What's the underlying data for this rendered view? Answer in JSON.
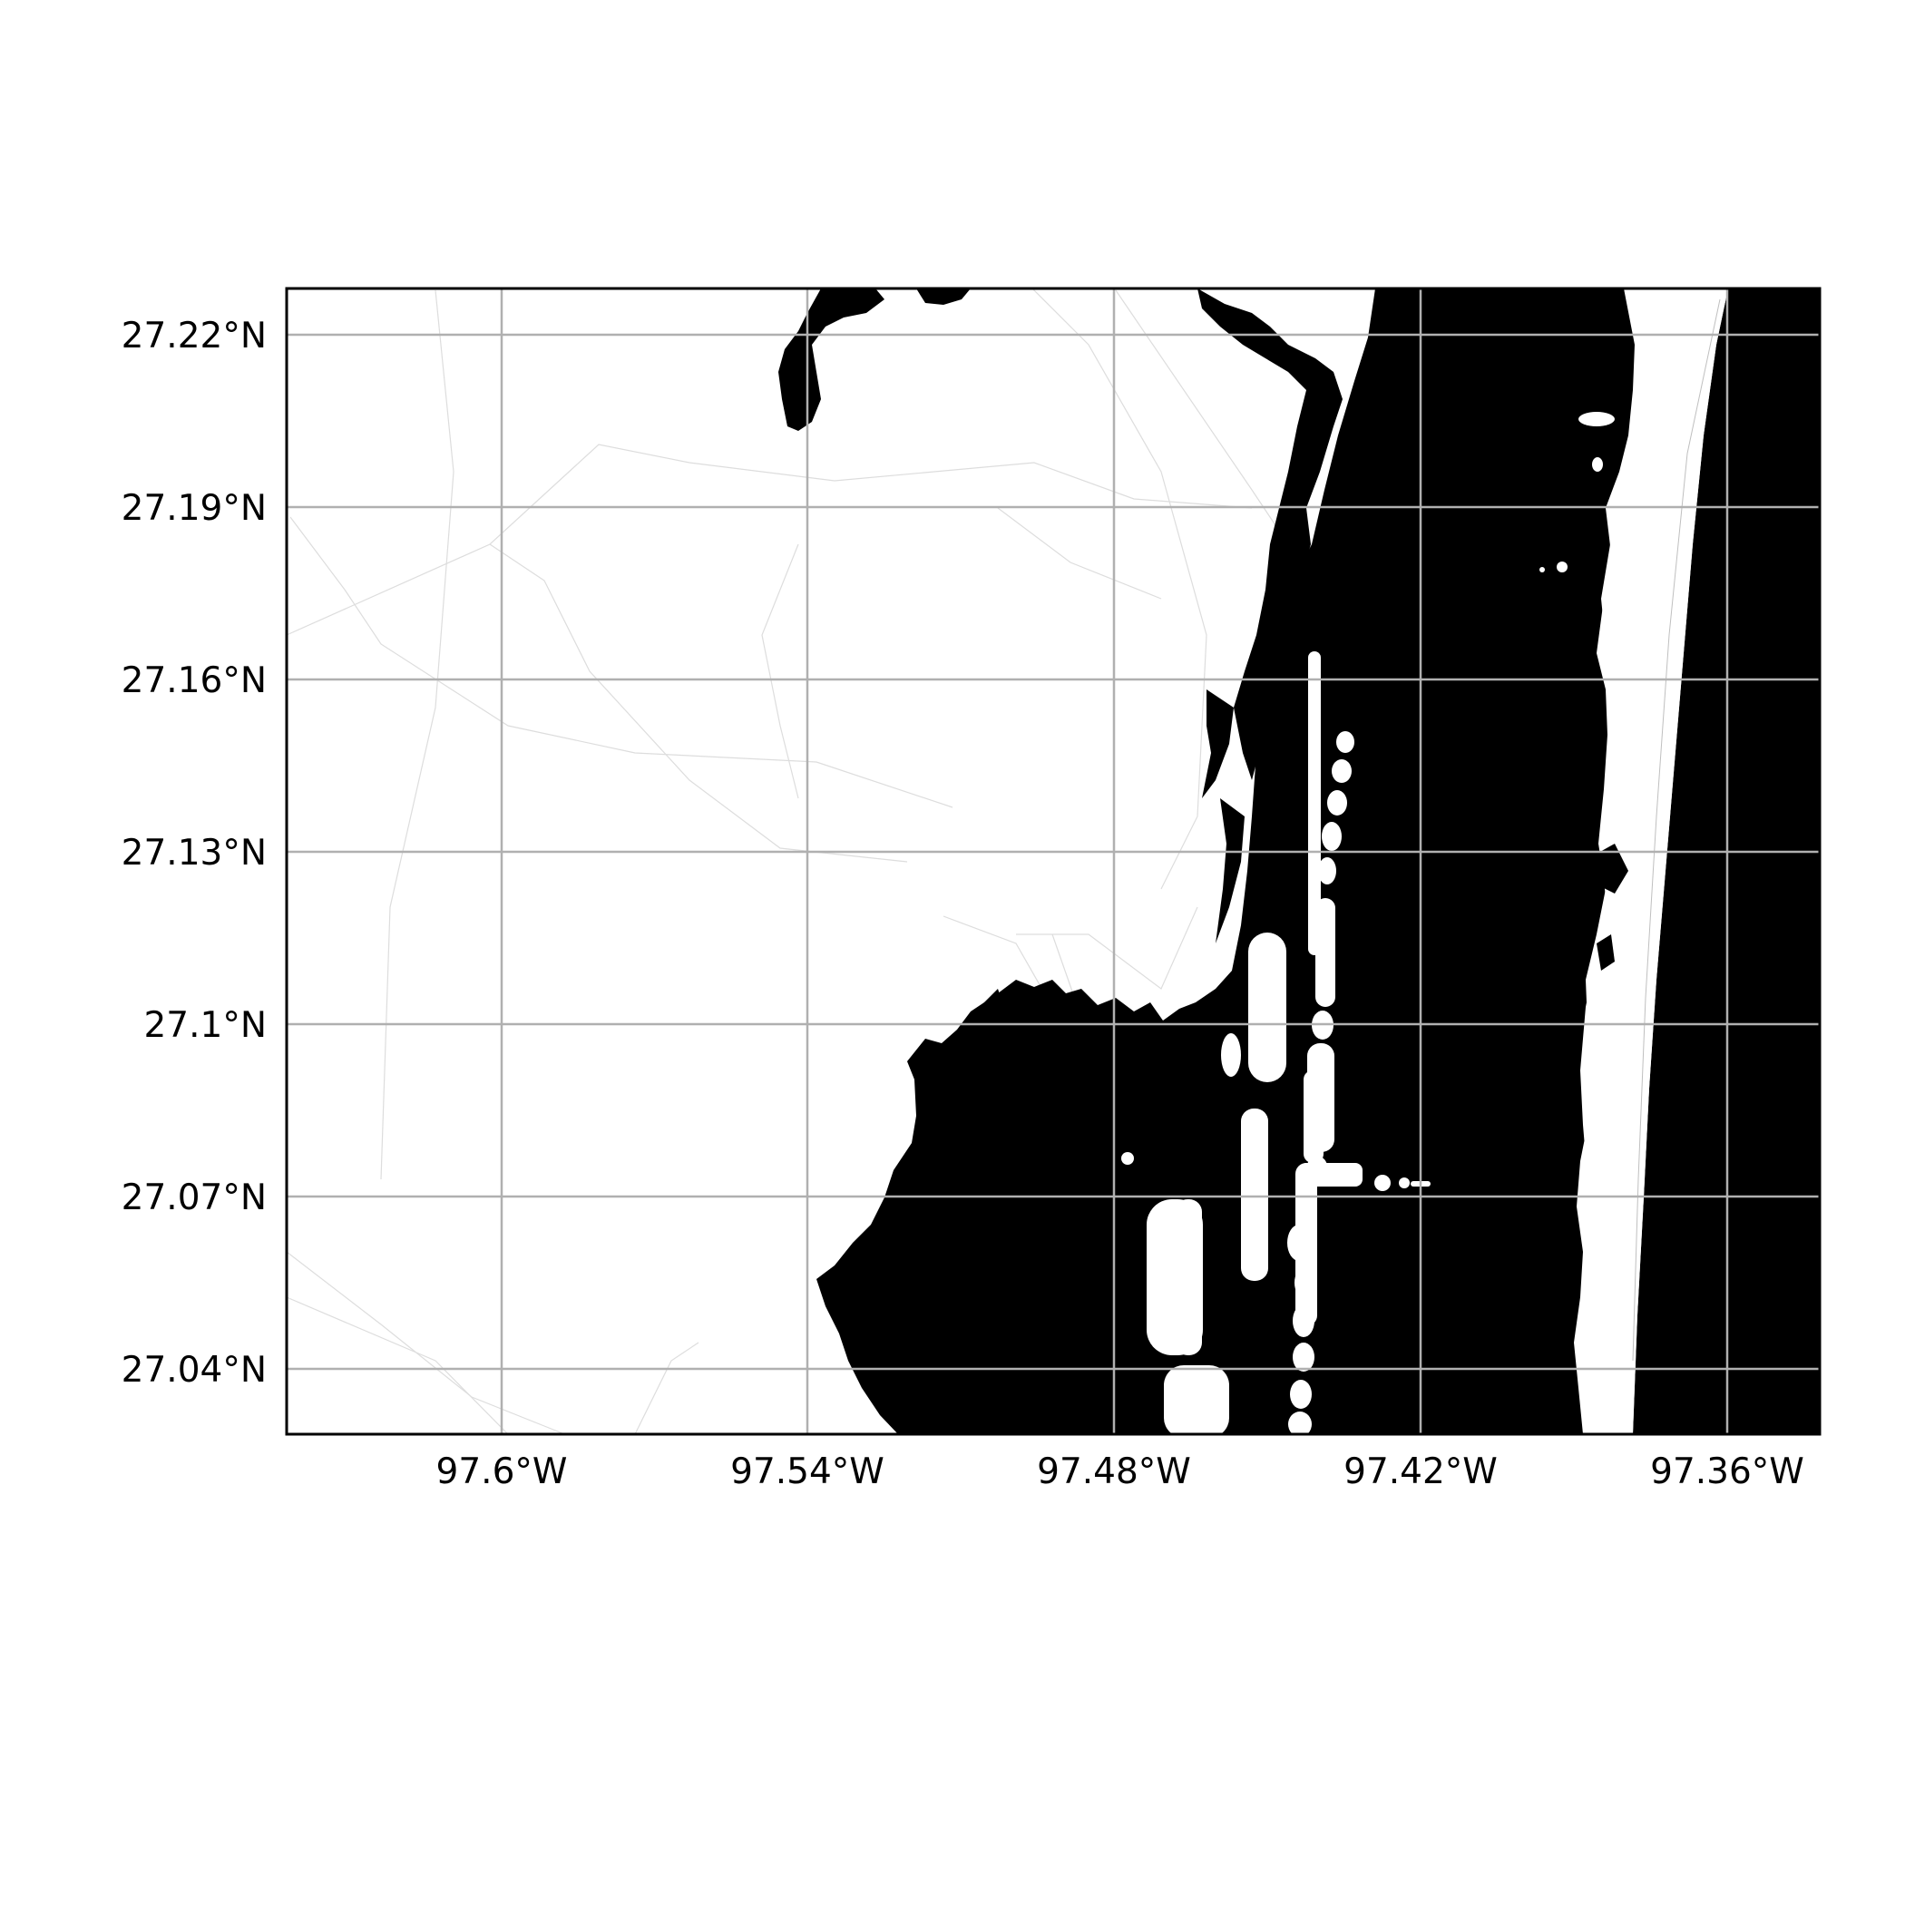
{
  "map": {
    "extent": {
      "lon_min": -97.67,
      "lon_max": -97.34,
      "lat_min": 27.026,
      "lat_max": 27.228
    },
    "gridlines": {
      "lon": [
        -97.6,
        -97.54,
        -97.48,
        -97.42,
        -97.36
      ],
      "lat": [
        27.22,
        27.19,
        27.16,
        27.13,
        27.1,
        27.07,
        27.04
      ]
    },
    "lon_labels": [
      "97.6°W",
      "97.54°W",
      "97.48°W",
      "97.42°W",
      "97.36°W"
    ],
    "lat_labels": [
      "27.22°N",
      "27.19°N",
      "27.16°N",
      "27.13°N",
      "27.1°N",
      "27.07°N",
      "27.04°N"
    ],
    "colors": {
      "water": "#000000",
      "land": "#ffffff",
      "grid": "#b0b0b0",
      "frame": "#000000",
      "roads": "#dcdcdc"
    }
  }
}
